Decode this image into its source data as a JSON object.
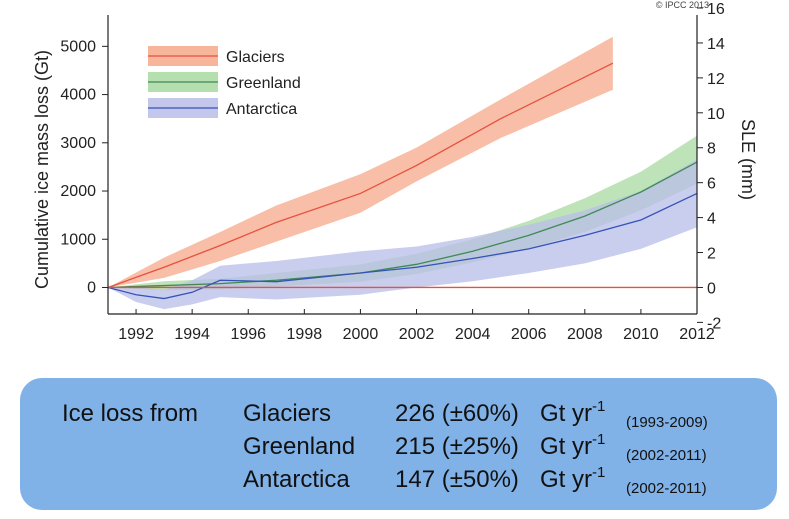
{
  "copyright": "© IPCC 2013",
  "chart_data": {
    "type": "area",
    "ylabel": "Cumulative ice mass loss (Gt)",
    "y2label": "SLE (mm)",
    "xlim": [
      1991,
      2012
    ],
    "ylim": [
      -550,
      5650
    ],
    "y2lim": [
      -1.52,
      15.6
    ],
    "x_ticks": [
      "1992",
      "1994",
      "1996",
      "1998",
      "2000",
      "2002",
      "2004",
      "2006",
      "2008",
      "2010",
      "2012"
    ],
    "y_ticks": [
      "0",
      "1000",
      "2000",
      "3000",
      "4000",
      "5000"
    ],
    "y2_ticks": [
      "-2",
      "0",
      "2",
      "4",
      "6",
      "8",
      "10",
      "12",
      "14",
      "16"
    ],
    "grid": false,
    "legend_position": "top-left",
    "series": [
      {
        "name": "Glaciers",
        "line_color": "#e8503f",
        "fill_color": "#f6a88a",
        "x": [
          1991,
          1993,
          1995,
          1997,
          2000,
          2002,
          2005,
          2009
        ],
        "y": [
          0,
          420,
          870,
          1350,
          1950,
          2530,
          3500,
          4650
        ],
        "y_low": [
          0,
          200,
          550,
          950,
          1550,
          2200,
          3100,
          4100
        ],
        "y_high": [
          0,
          620,
          1150,
          1700,
          2350,
          2900,
          3900,
          5200
        ]
      },
      {
        "name": "Greenland",
        "line_color": "#3f8a55",
        "fill_color": "#a8d9a0",
        "x": [
          1991,
          1993,
          1995,
          1997,
          2000,
          2002,
          2004,
          2006,
          2008,
          2010,
          2012
        ],
        "y": [
          0,
          40,
          80,
          150,
          300,
          480,
          750,
          1080,
          1480,
          1980,
          2600
        ],
        "y_low": [
          0,
          -60,
          -40,
          20,
          120,
          280,
          520,
          800,
          1150,
          1600,
          2150
        ],
        "y_high": [
          0,
          130,
          180,
          300,
          480,
          700,
          1000,
          1380,
          1850,
          2400,
          3150
        ]
      },
      {
        "name": "Antarctica",
        "line_color": "#3553b8",
        "fill_color": "#b8bde8",
        "x": [
          1991,
          1992,
          1993,
          1994,
          1995,
          1997,
          2000,
          2002,
          2004,
          2006,
          2008,
          2010,
          2012
        ],
        "y": [
          0,
          -150,
          -230,
          -100,
          150,
          120,
          300,
          420,
          600,
          800,
          1080,
          1400,
          1950
        ],
        "y_low": [
          0,
          -300,
          -450,
          -350,
          -200,
          -250,
          -150,
          0,
          130,
          300,
          500,
          800,
          1250
        ],
        "y_high": [
          0,
          0,
          -50,
          150,
          450,
          550,
          750,
          850,
          1050,
          1300,
          1600,
          2000,
          2650
        ]
      },
      {
        "line_color": "#e8503f",
        "x": [
          1991,
          2012
        ],
        "y": [
          0,
          0
        ]
      }
    ]
  },
  "summary": {
    "prefix": "Ice loss from",
    "rows": [
      {
        "name": "Glaciers",
        "value": "226 (±60%)",
        "unit": "Gt yr",
        "exp": "-1",
        "period": "(1993-2009)"
      },
      {
        "name": "Greenland",
        "value": "215 (±25%)",
        "unit": "Gt yr",
        "exp": "-1",
        "period": "(2002-2011)"
      },
      {
        "name": "Antarctica",
        "value": "147 (±50%)",
        "unit": "Gt yr",
        "exp": "-1",
        "period": "(2002-2011)"
      }
    ]
  }
}
